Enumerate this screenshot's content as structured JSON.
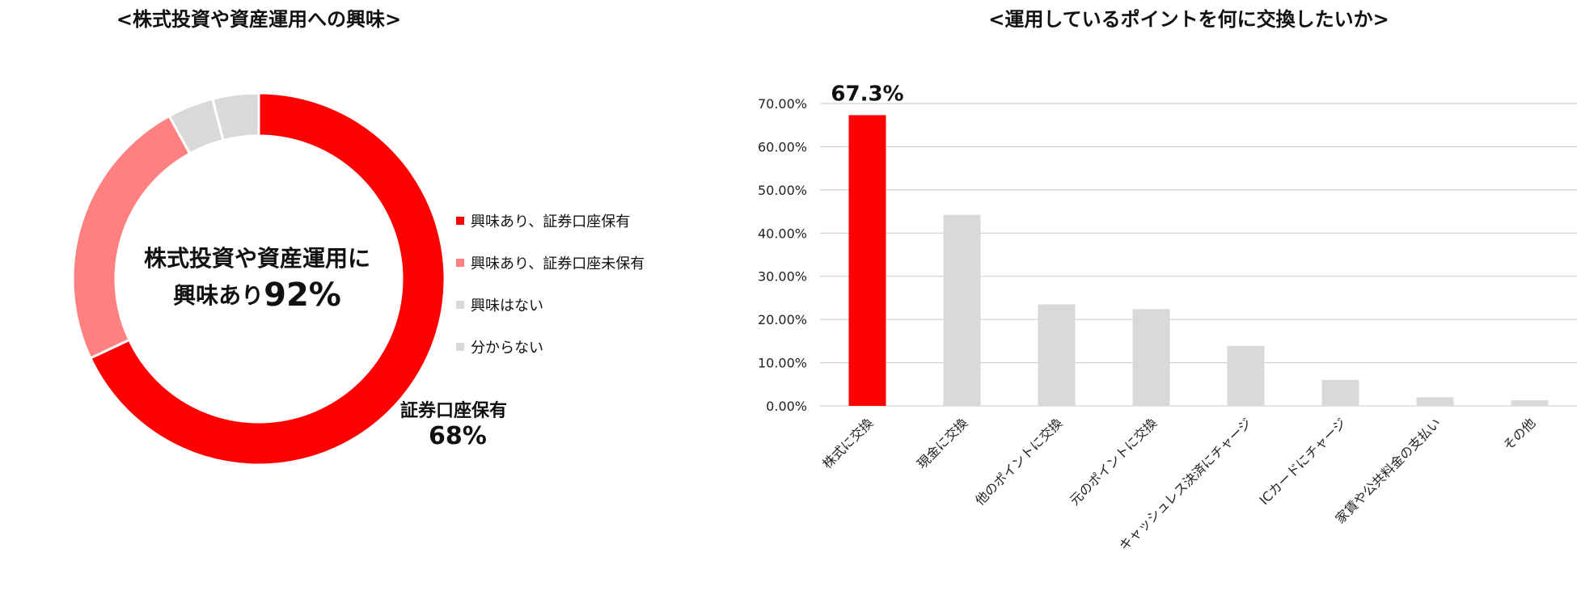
{
  "titles": {
    "left": "<株式投資や資産運用への興味>",
    "right": "<運用しているポイントを何に交換したいか>"
  },
  "donut": {
    "center_line1": "株式投資や資産運用に",
    "center_line2_prefix": "興味あり",
    "center_line2_pct": "92%",
    "annotation_label": "証券口座保有",
    "annotation_value": "68%",
    "legend": [
      {
        "label": "興味あり、証券口座保有",
        "color": "#ff0000"
      },
      {
        "label": "興味あり、証券口座未保有",
        "color": "#ff8080"
      },
      {
        "label": "興味はない",
        "color": "#d9d9d9"
      },
      {
        "label": "分からない",
        "color": "#d9d9d9"
      }
    ]
  },
  "chart_data": [
    {
      "type": "pie",
      "donut": true,
      "labels": [
        "興味あり、証券口座保有",
        "興味あり、証券口座未保有",
        "興味はない",
        "分からない"
      ],
      "values": [
        68,
        24,
        4,
        4
      ],
      "colors": [
        "#ff0000",
        "#ff8080",
        "#d9d9d9",
        "#d9d9d9"
      ],
      "legend_position": "right"
    },
    {
      "type": "bar",
      "categories": [
        "株式に交換",
        "現金に交換",
        "他のポイントに交換",
        "元のポイントに交換",
        "キャッシュレス決済にチャージ",
        "ICカードにチャージ",
        "家賃や公共料金の支払い",
        "その他"
      ],
      "values": [
        67.3,
        44.2,
        23.5,
        22.4,
        13.9,
        6.0,
        2.0,
        1.3
      ],
      "colors": [
        "#ff0000",
        "#d9d9d9",
        "#d9d9d9",
        "#d9d9d9",
        "#d9d9d9",
        "#d9d9d9",
        "#d9d9d9",
        "#d9d9d9"
      ],
      "ylim": [
        0,
        70
      ],
      "yticks": [
        "0.00%",
        "10.00%",
        "20.00%",
        "30.00%",
        "40.00%",
        "50.00%",
        "60.00%",
        "70.00%"
      ],
      "annotation": "67.3%",
      "grid": true
    }
  ]
}
